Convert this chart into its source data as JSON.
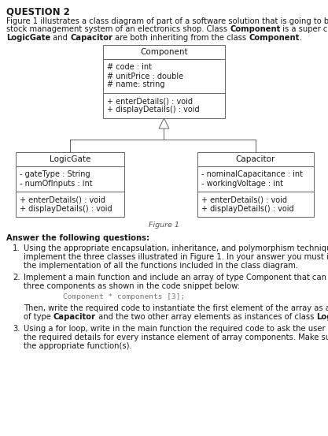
{
  "bg_color": "#ffffff",
  "title": "QUESTION 2",
  "intro_line1": "Figure 1 illustrates a class diagram of part of a software solution that is going to be used by a",
  "intro_line2_plain1": "stock management system of an electronics shop. Class ",
  "intro_line2_bold": "Component",
  "intro_line2_plain2": " is a super class. Classes",
  "intro_line3_bold1": "LogicGate",
  "intro_line3_plain1": " and ",
  "intro_line3_bold2": "Capacitor",
  "intro_line3_plain2": " are both inheriting from the class ",
  "intro_line3_bold3": "Component",
  "intro_line3_plain3": ".",
  "comp_name": "Component",
  "comp_attrs": [
    "# code : int",
    "# unitPrice : double",
    "# name: string"
  ],
  "comp_meths": [
    "+ enterDetails() : void",
    "+ displayDetails() : void"
  ],
  "lg_name": "LogicGate",
  "lg_attrs": [
    "- gateType : String",
    "- numOfInputs : int"
  ],
  "lg_meths": [
    "+ enterDetails() : void",
    "+ displayDetails() : void"
  ],
  "cap_name": "Capacitor",
  "cap_attrs": [
    "- nominalCapacitance : int",
    "- workingVoltage : int"
  ],
  "cap_meths": [
    "+ enterDetails() : void",
    "+ displayDetails() : void"
  ],
  "figure_label": "Figure 1",
  "answer_header": "Answer the following questions:",
  "q1_num": "1.",
  "q1_line1": "Using the appropriate encapsulation, inheritance, and polymorphism techniques,",
  "q1_line2": "implement the three classes illustrated in Figure 1. In your answer you must include",
  "q1_line3": "the implementation of all the functions included in the class diagram.",
  "q2_num": "2.",
  "q2_line1": "Implement a main function and include an array of type Component that can store",
  "q2_line2": "three components as shown in the code snippet below:",
  "q2_code": "Component * components [3];",
  "q2_then1": "Then, write the required code to instantiate the first element of the array as an object",
  "q2_then2_plain1": "of type ",
  "q2_then2_bold1": "Capacitor",
  "q2_then2_plain2": " and the two other array elements as instances of class ",
  "q2_then2_bold2": "LogicGate",
  "q2_then2_plain3": ".",
  "q3_num": "3.",
  "q3_line1": "Using a for loop, write in the main function the required code to ask the user to enter",
  "q3_line2": "the required details for every instance element of array components. Make sure to use",
  "q3_line3": "the appropriate function(s).",
  "box_edge": "#666666",
  "text_dark": "#1a1a1a",
  "text_gray": "#555555",
  "code_color": "#777777"
}
